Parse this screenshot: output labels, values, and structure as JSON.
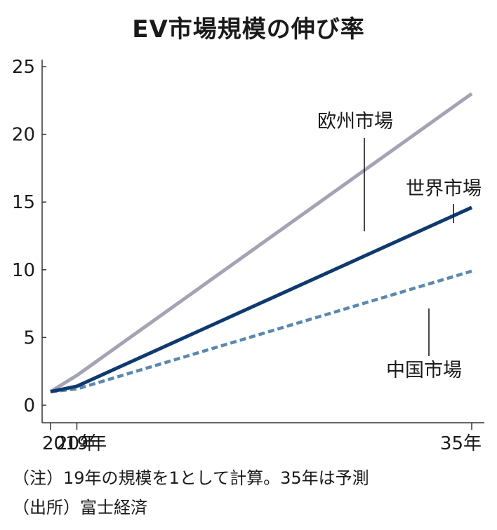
{
  "chart_data": {
    "type": "line",
    "title": "EV市場規模の伸び率",
    "categories": [
      "2019年",
      "20年",
      "35年"
    ],
    "x_years": [
      2019,
      2020,
      2035
    ],
    "ylim": [
      0,
      25
    ],
    "yticks": [
      0,
      5,
      10,
      15,
      20,
      25
    ],
    "series": [
      {
        "name": "欧州市場",
        "values": [
          1.0,
          2.2,
          23.0
        ],
        "color": "#a4a3b5",
        "style": "solid"
      },
      {
        "name": "世界市場",
        "values": [
          1.0,
          1.4,
          14.6
        ],
        "color": "#0f3a6e",
        "style": "solid"
      },
      {
        "name": "中国市場",
        "values": [
          1.0,
          1.2,
          9.9
        ],
        "color": "#5b88ad",
        "style": "dashed"
      }
    ],
    "grid": false,
    "legend": "inline labels with leader lines"
  },
  "notes": {
    "note": "（注）19年の規模を1として計算。35年は予測",
    "source": "（出所）富士経済"
  }
}
